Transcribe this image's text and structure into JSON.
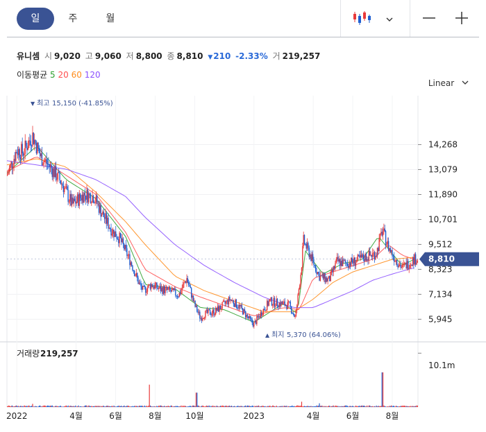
{
  "toolbar": {
    "tabs": [
      "일",
      "주",
      "월"
    ],
    "active_tab": "일",
    "chart_style_icon": "candlestick-icon",
    "dropdown_icon": "chevron-down-icon",
    "zoom_out_icon": "minus-icon",
    "zoom_in_icon": "plus-icon"
  },
  "stock": {
    "name": "유니셈",
    "open_label": "시",
    "open": "9,020",
    "high_label": "고",
    "high": "9,060",
    "low_label": "저",
    "low": "8,800",
    "close_label": "종",
    "close": "8,810",
    "change_arrow": "▼",
    "change": "210",
    "change_pct": "-2.33%",
    "volume_label": "거",
    "volume": "219,257"
  },
  "moving_average": {
    "label": "이동평균",
    "periods": [
      {
        "label": "5",
        "color": "#2ca02c"
      },
      {
        "label": "20",
        "color": "#ff4d4d"
      },
      {
        "label": "60",
        "color": "#ff8c1a"
      },
      {
        "label": "120",
        "color": "#8a4fff"
      }
    ]
  },
  "scale": {
    "label": "Linear",
    "icon": "chevron-down-icon"
  },
  "colors": {
    "up": "#e8393a",
    "down": "#1f5fd1",
    "accent": "#3a5394"
  },
  "chart_data": {
    "type": "candlestick",
    "price_axis_ticks": [
      14268,
      13079,
      11890,
      10701,
      9512,
      8323,
      7134,
      5945
    ],
    "price_axis_labels": [
      "14,268",
      "13,079",
      "11,890",
      "10,701",
      "9,512",
      "8,323",
      "7,134",
      "5,945"
    ],
    "current_price_label": "8,810",
    "current_price": 8810,
    "ylim": [
      4900,
      16600
    ],
    "high_annotation": {
      "marker": "▼",
      "text": "최고",
      "value": "15,150 (-41.85%)",
      "price": 15150
    },
    "low_annotation": {
      "marker": "▲",
      "text": "최지",
      "value": "5,370 (64.06%)",
      "price": 5370
    },
    "x_tick_labels": [
      "2022",
      "4월",
      "6월",
      "8월",
      "10월",
      "2023",
      "4월",
      "6월",
      "8월"
    ],
    "x_tick_months": [
      0,
      3,
      5,
      7,
      9,
      12,
      15,
      17,
      19
    ],
    "xlim_months": [
      -0.5,
      20.3
    ],
    "price_path_months": [
      -0.5,
      0.0,
      0.3,
      0.8,
      1.2,
      1.7,
      2.3,
      2.8,
      3.4,
      3.9,
      4.3,
      4.8,
      5.2,
      5.8,
      6.2,
      6.4,
      6.8,
      7.2,
      7.7,
      8.2,
      8.6,
      9.0,
      9.3,
      9.5,
      10.0,
      10.3,
      10.8,
      11.3,
      11.8,
      12.0,
      12.4,
      12.8,
      13.3,
      13.8,
      14.1,
      14.4,
      14.5,
      14.8,
      15.3,
      15.8,
      16.2,
      16.6,
      17.1,
      17.6,
      18.2,
      18.5,
      18.8,
      19.1,
      19.5,
      19.8,
      20.1
    ],
    "price_path_values": [
      12800,
      14000,
      13900,
      14700,
      13700,
      13200,
      12400,
      11400,
      11900,
      11800,
      11000,
      10200,
      9800,
      8600,
      7600,
      7300,
      7600,
      7400,
      7300,
      7100,
      7900,
      6600,
      6000,
      6200,
      6300,
      6500,
      6900,
      6500,
      5900,
      5700,
      6300,
      6800,
      6700,
      6600,
      6000,
      8400,
      9700,
      9100,
      8000,
      7800,
      8700,
      8600,
      8700,
      8900,
      9100,
      10200,
      9400,
      8900,
      8400,
      8600,
      8810
    ],
    "ma_series": [
      {
        "label": "5",
        "months": [
          -0.5,
          1.0,
          2.5,
          4.0,
          5.5,
          6.5,
          8.0,
          9.3,
          10.5,
          12.0,
          13.5,
          14.2,
          14.6,
          15.5,
          16.5,
          17.5,
          18.3,
          18.8,
          19.5,
          20.1
        ],
        "values": [
          12900,
          14200,
          12600,
          11700,
          9900,
          7600,
          7400,
          6500,
          6400,
          5800,
          6700,
          6200,
          9200,
          8100,
          8600,
          8800,
          9900,
          9300,
          8500,
          8800
        ]
      },
      {
        "label": "20",
        "months": [
          -0.5,
          1.0,
          2.5,
          4.0,
          5.5,
          6.5,
          8.0,
          9.3,
          10.5,
          12.0,
          13.5,
          14.3,
          15.0,
          16.0,
          17.0,
          18.0,
          18.8,
          19.5,
          20.1
        ],
        "values": [
          13000,
          13700,
          12800,
          11900,
          10100,
          8300,
          7500,
          7000,
          6600,
          6100,
          6500,
          6400,
          7900,
          8200,
          8500,
          8800,
          9500,
          9000,
          8800
        ]
      },
      {
        "label": "60",
        "months": [
          -0.5,
          1.0,
          2.5,
          4.0,
          5.5,
          6.5,
          8.0,
          9.5,
          11.0,
          12.5,
          14.0,
          15.0,
          16.0,
          17.0,
          18.0,
          19.0,
          20.1
        ],
        "values": [
          13300,
          13600,
          13200,
          12000,
          10600,
          9500,
          8000,
          7300,
          6800,
          6300,
          6300,
          6900,
          7700,
          8200,
          8500,
          8800,
          8900
        ]
      },
      {
        "label": "120",
        "months": [
          -0.5,
          1.0,
          2.5,
          4.0,
          5.5,
          6.5,
          8.0,
          9.5,
          11.0,
          12.5,
          14.0,
          15.0,
          16.0,
          17.0,
          18.0,
          19.0,
          20.1
        ],
        "values": [
          13500,
          13300,
          13100,
          12600,
          11800,
          10800,
          9500,
          8500,
          7700,
          7000,
          6500,
          6500,
          6900,
          7300,
          7800,
          8100,
          8400
        ]
      }
    ],
    "volume_label": "거래량",
    "volume_value": "219,257",
    "volume_axis_label": "10.1m",
    "volume_axis_value": 10100000,
    "volume_spikes": [
      {
        "month": 6.7,
        "value": 4200000
      },
      {
        "month": 9.1,
        "value": 2700000
      },
      {
        "month": 14.4,
        "value": 1000000
      },
      {
        "month": 18.5,
        "value": 6500000
      },
      {
        "month": 0.8,
        "value": 600000
      },
      {
        "month": 15.3,
        "value": 700000
      }
    ]
  }
}
